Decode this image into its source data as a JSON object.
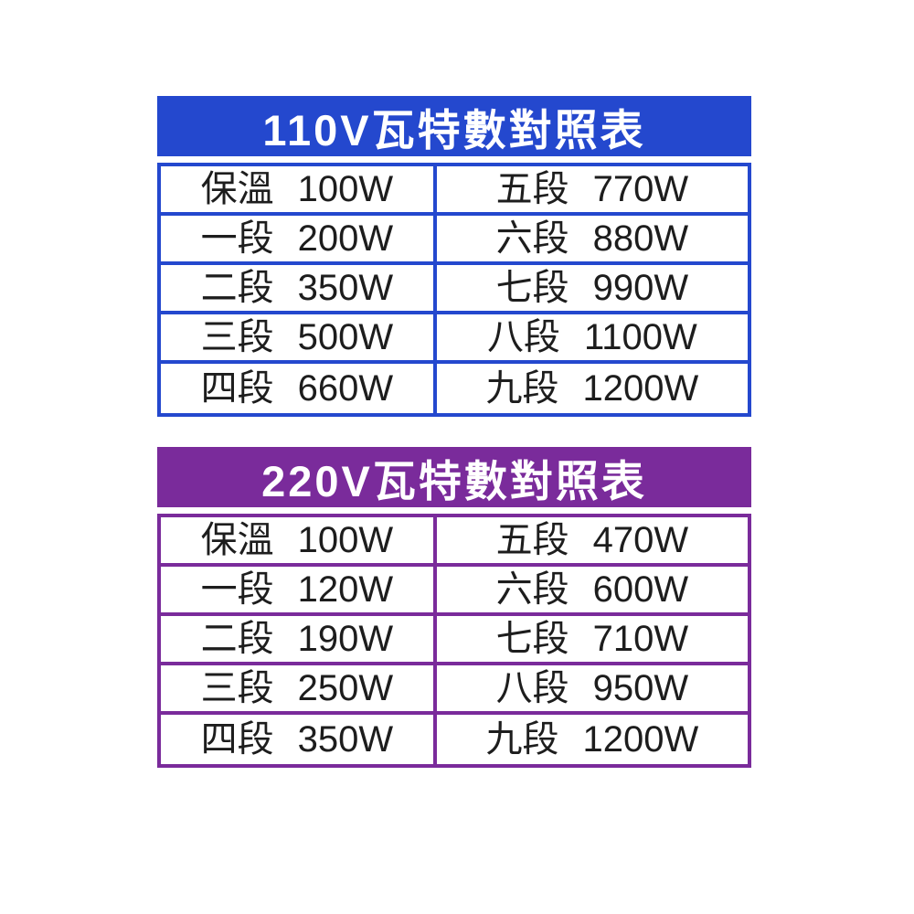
{
  "tables": [
    {
      "title": "110V瓦特數對照表",
      "accent_color": "#2448ce",
      "rows": [
        {
          "left_label": "保溫",
          "left_value": "100W",
          "right_label": "五段",
          "right_value": "770W"
        },
        {
          "left_label": "一段",
          "left_value": "200W",
          "right_label": "六段",
          "right_value": "880W"
        },
        {
          "left_label": "二段",
          "left_value": "350W",
          "right_label": "七段",
          "right_value": "990W"
        },
        {
          "left_label": "三段",
          "left_value": "500W",
          "right_label": "八段",
          "right_value": "1100W"
        },
        {
          "left_label": "四段",
          "left_value": "660W",
          "right_label": "九段",
          "right_value": "1200W"
        }
      ]
    },
    {
      "title": "220V瓦特數對照表",
      "accent_color": "#7a2b9b",
      "rows": [
        {
          "left_label": "保溫",
          "left_value": "100W",
          "right_label": "五段",
          "right_value": "470W"
        },
        {
          "left_label": "一段",
          "left_value": "120W",
          "right_label": "六段",
          "right_value": "600W"
        },
        {
          "left_label": "二段",
          "left_value": "190W",
          "right_label": "七段",
          "right_value": "710W"
        },
        {
          "left_label": "三段",
          "left_value": "250W",
          "right_label": "八段",
          "right_value": "950W"
        },
        {
          "left_label": "四段",
          "left_value": "350W",
          "right_label": "九段",
          "right_value": "1200W"
        }
      ]
    }
  ],
  "chart_data": [
    {
      "type": "table",
      "title": "110V瓦特數對照表",
      "rows": [
        [
          "保溫",
          "100W"
        ],
        [
          "一段",
          "200W"
        ],
        [
          "二段",
          "350W"
        ],
        [
          "三段",
          "500W"
        ],
        [
          "四段",
          "660W"
        ],
        [
          "五段",
          "770W"
        ],
        [
          "六段",
          "880W"
        ],
        [
          "七段",
          "990W"
        ],
        [
          "八段",
          "1100W"
        ],
        [
          "九段",
          "1200W"
        ]
      ]
    },
    {
      "type": "table",
      "title": "220V瓦特數對照表",
      "rows": [
        [
          "保溫",
          "100W"
        ],
        [
          "一段",
          "120W"
        ],
        [
          "二段",
          "190W"
        ],
        [
          "三段",
          "250W"
        ],
        [
          "四段",
          "350W"
        ],
        [
          "五段",
          "470W"
        ],
        [
          "六段",
          "600W"
        ],
        [
          "七段",
          "710W"
        ],
        [
          "八段",
          "950W"
        ],
        [
          "九段",
          "1200W"
        ]
      ]
    }
  ]
}
